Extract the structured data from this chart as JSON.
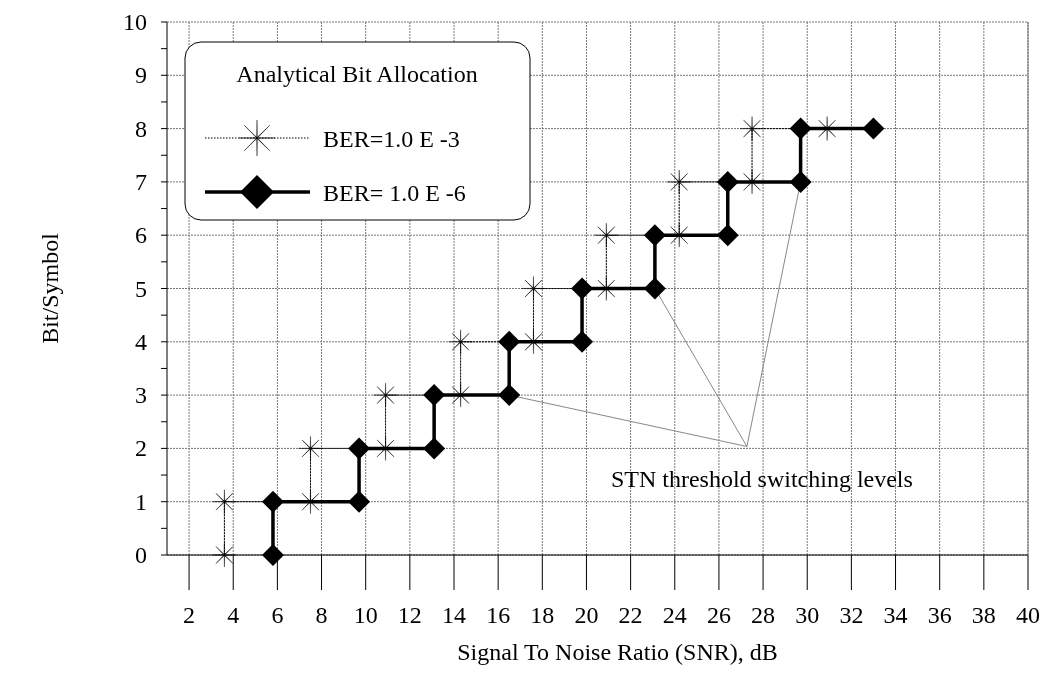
{
  "chart_data": {
    "type": "line",
    "xlabel": "Signal To Noise Ratio (SNR), dB",
    "ylabel": "Bit/Symbol",
    "legend_title": "Analytical Bit Allocation",
    "legend": "top left",
    "grid": true,
    "xlim": [
      1,
      40
    ],
    "ylim": [
      0,
      10
    ],
    "xticks": [
      2,
      4,
      6,
      8,
      10,
      12,
      14,
      16,
      18,
      20,
      22,
      24,
      26,
      28,
      30,
      32,
      34,
      36,
      38,
      40
    ],
    "yticks": [
      0,
      {
        "value": 0.5,
        "label": null
      },
      1,
      {
        "value": 1.5,
        "label": null
      },
      2,
      {
        "value": 2.5,
        "label": null
      },
      3,
      {
        "value": 3.5,
        "label": null
      },
      4,
      {
        "value": 4.5,
        "label": null
      },
      5,
      {
        "value": 5.5,
        "label": null
      },
      6,
      {
        "value": 6.5,
        "label": null
      },
      7,
      {
        "value": 7.5,
        "label": null
      },
      8,
      {
        "value": 8.5,
        "label": null
      },
      9,
      {
        "value": 9.5,
        "label": null
      },
      10
    ],
    "series": [
      {
        "name": "BER=1.0 E -3",
        "color": "#000000",
        "marker": "star",
        "line_style": "dotted",
        "x": [
          3.6,
          3.6,
          7.5,
          7.5,
          10.9,
          10.9,
          14.3,
          14.3,
          17.6,
          17.6,
          20.9,
          20.9,
          24.2,
          24.2,
          27.5,
          27.5,
          30.9
        ],
        "values": [
          0,
          1,
          1,
          2,
          2,
          3,
          3,
          4,
          4,
          5,
          5,
          6,
          6,
          7,
          7,
          8,
          8
        ]
      },
      {
        "name": "BER= 1.0 E -6",
        "color": "#000000",
        "marker": "diamond",
        "line_style": "solid",
        "x": [
          5.8,
          5.8,
          9.7,
          9.7,
          13.1,
          13.1,
          16.5,
          16.5,
          19.8,
          19.8,
          23.1,
          23.1,
          26.4,
          26.4,
          29.7,
          29.7,
          33.0
        ],
        "values": [
          0,
          1,
          1,
          2,
          2,
          3,
          3,
          4,
          4,
          5,
          5,
          6,
          6,
          7,
          7,
          8,
          8
        ]
      }
    ],
    "annotations": [
      {
        "text": "STN threshold switching levels",
        "x": 23.1,
        "y": 5
      }
    ]
  }
}
